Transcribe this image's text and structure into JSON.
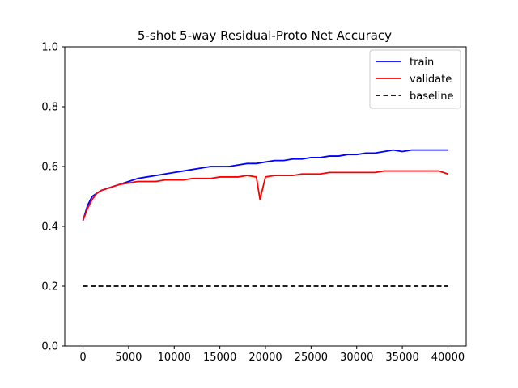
{
  "chart_data": {
    "type": "line",
    "title": "5-shot 5-way Residual-Proto Net Accuracy",
    "xlabel": "",
    "ylabel": "",
    "xlim": [
      -2000,
      42000
    ],
    "ylim": [
      0.0,
      1.0
    ],
    "xticks": [
      0,
      5000,
      10000,
      15000,
      20000,
      25000,
      30000,
      35000,
      40000
    ],
    "yticks": [
      0.0,
      0.2,
      0.4,
      0.6,
      0.8,
      1.0
    ],
    "xtick_labels": [
      "0",
      "5000",
      "10000",
      "15000",
      "20000",
      "25000",
      "30000",
      "35000",
      "40000"
    ],
    "ytick_labels": [
      "0.0",
      "0.2",
      "0.4",
      "0.6",
      "0.8",
      "1.0"
    ],
    "grid": false,
    "legend": {
      "placement": "top-right",
      "entries": [
        "train",
        "validate",
        "baseline"
      ]
    },
    "series": [
      {
        "name": "train",
        "color": "#0000ff",
        "linestyle": "solid",
        "x": [
          0,
          500,
          1000,
          1500,
          2000,
          3000,
          4000,
          5000,
          6000,
          7000,
          8000,
          9000,
          10000,
          11000,
          12000,
          13000,
          14000,
          15000,
          16000,
          17000,
          18000,
          19000,
          20000,
          21000,
          22000,
          23000,
          24000,
          25000,
          26000,
          27000,
          28000,
          29000,
          30000,
          31000,
          32000,
          33000,
          34000,
          35000,
          36000,
          37000,
          38000,
          39000,
          40000
        ],
        "y": [
          0.42,
          0.47,
          0.5,
          0.51,
          0.52,
          0.53,
          0.54,
          0.55,
          0.56,
          0.565,
          0.57,
          0.575,
          0.58,
          0.585,
          0.59,
          0.595,
          0.6,
          0.6,
          0.6,
          0.605,
          0.61,
          0.61,
          0.615,
          0.62,
          0.62,
          0.625,
          0.625,
          0.63,
          0.63,
          0.635,
          0.635,
          0.64,
          0.64,
          0.645,
          0.645,
          0.65,
          0.655,
          0.65,
          0.655,
          0.655,
          0.655,
          0.655,
          0.655
        ]
      },
      {
        "name": "validate",
        "color": "#ff0000",
        "linestyle": "solid",
        "x": [
          0,
          500,
          1000,
          1500,
          2000,
          3000,
          4000,
          5000,
          6000,
          7000,
          8000,
          9000,
          10000,
          11000,
          12000,
          13000,
          14000,
          15000,
          16000,
          17000,
          18000,
          19000,
          19400,
          20000,
          21000,
          22000,
          23000,
          24000,
          25000,
          26000,
          27000,
          28000,
          29000,
          30000,
          31000,
          32000,
          33000,
          34000,
          35000,
          36000,
          37000,
          38000,
          39000,
          40000
        ],
        "y": [
          0.42,
          0.46,
          0.49,
          0.51,
          0.52,
          0.53,
          0.54,
          0.545,
          0.55,
          0.55,
          0.55,
          0.555,
          0.555,
          0.555,
          0.56,
          0.56,
          0.56,
          0.565,
          0.565,
          0.565,
          0.57,
          0.565,
          0.49,
          0.565,
          0.57,
          0.57,
          0.57,
          0.575,
          0.575,
          0.575,
          0.58,
          0.58,
          0.58,
          0.58,
          0.58,
          0.58,
          0.585,
          0.585,
          0.585,
          0.585,
          0.585,
          0.585,
          0.585,
          0.575
        ]
      },
      {
        "name": "baseline",
        "color": "#000000",
        "linestyle": "dashed",
        "x": [
          0,
          40000
        ],
        "y": [
          0.2,
          0.2
        ]
      }
    ]
  }
}
